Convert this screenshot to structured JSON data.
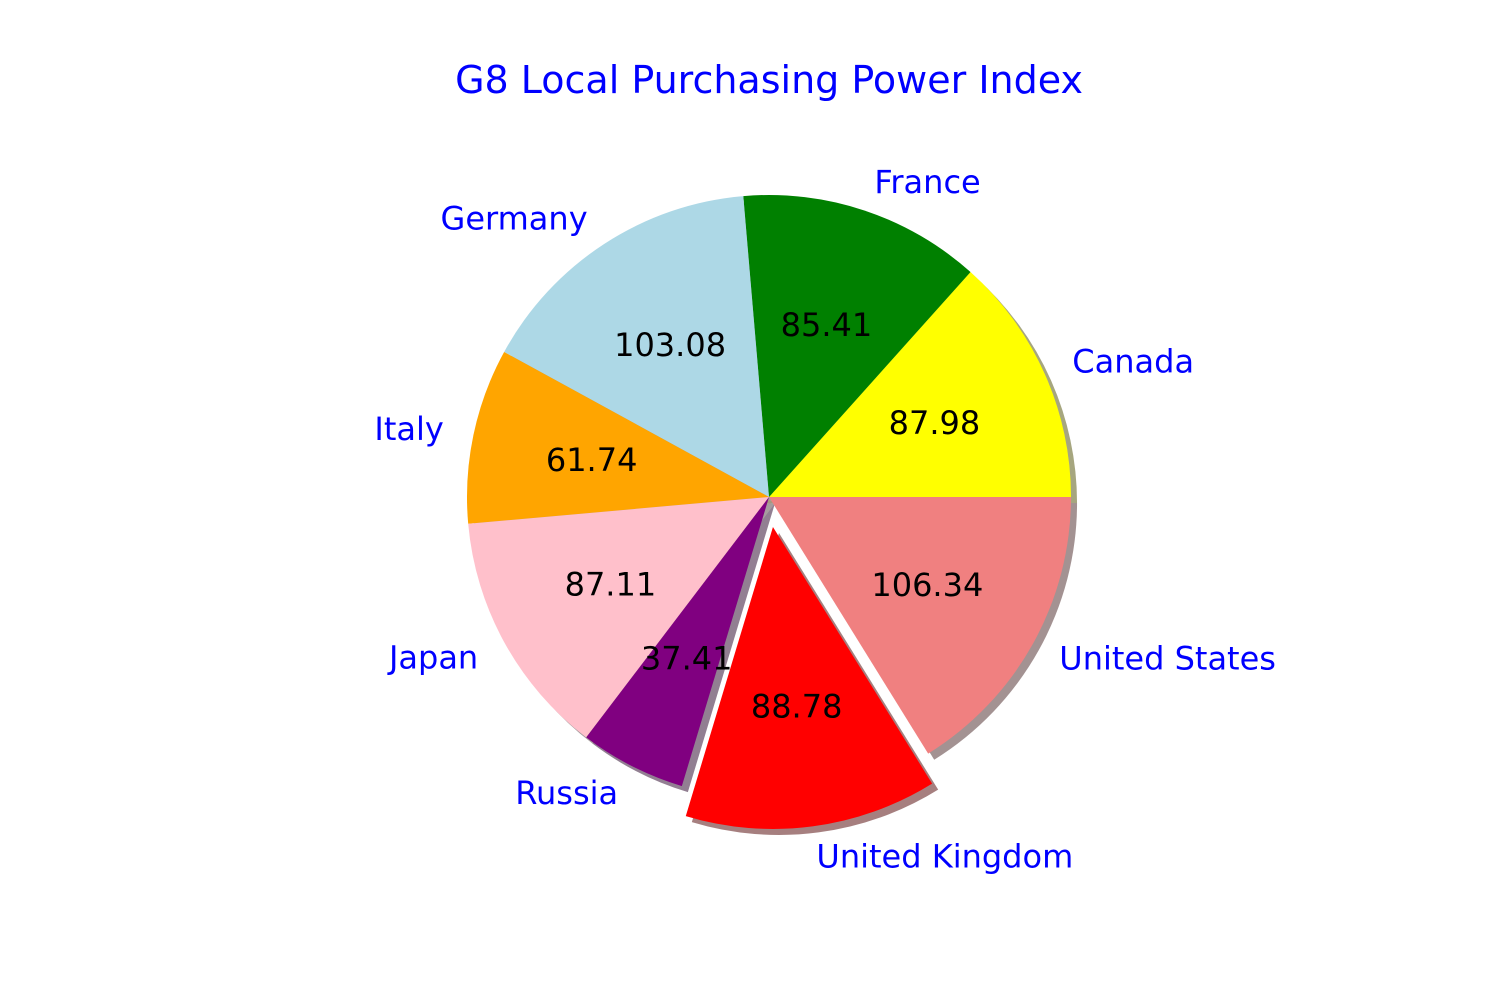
{
  "chart_data": {
    "type": "pie",
    "title": "G8 Local Purchasing Power Index",
    "start_angle_deg": 0,
    "direction": "counterclockwise",
    "shadow": true,
    "exploded": [
      "United Kingdom"
    ],
    "slices": [
      {
        "label": "Canada",
        "value": 87.98,
        "display": "87.98",
        "color": "#ffff00"
      },
      {
        "label": "France",
        "value": 85.41,
        "display": "85.41",
        "color": "#008000"
      },
      {
        "label": "Germany",
        "value": 103.08,
        "display": "103.08",
        "color": "#add8e6"
      },
      {
        "label": "Italy",
        "value": 61.74,
        "display": "61.74",
        "color": "#ffa500"
      },
      {
        "label": "Japan",
        "value": 87.11,
        "display": "87.11",
        "color": "#ffc0cb"
      },
      {
        "label": "Russia",
        "value": 37.41,
        "display": "37.41",
        "color": "#800080"
      },
      {
        "label": "United Kingdom",
        "value": 88.78,
        "display": "88.78",
        "color": "#ff0000"
      },
      {
        "label": "United States",
        "value": 106.34,
        "display": "106.34",
        "color": "#f08080"
      }
    ]
  }
}
